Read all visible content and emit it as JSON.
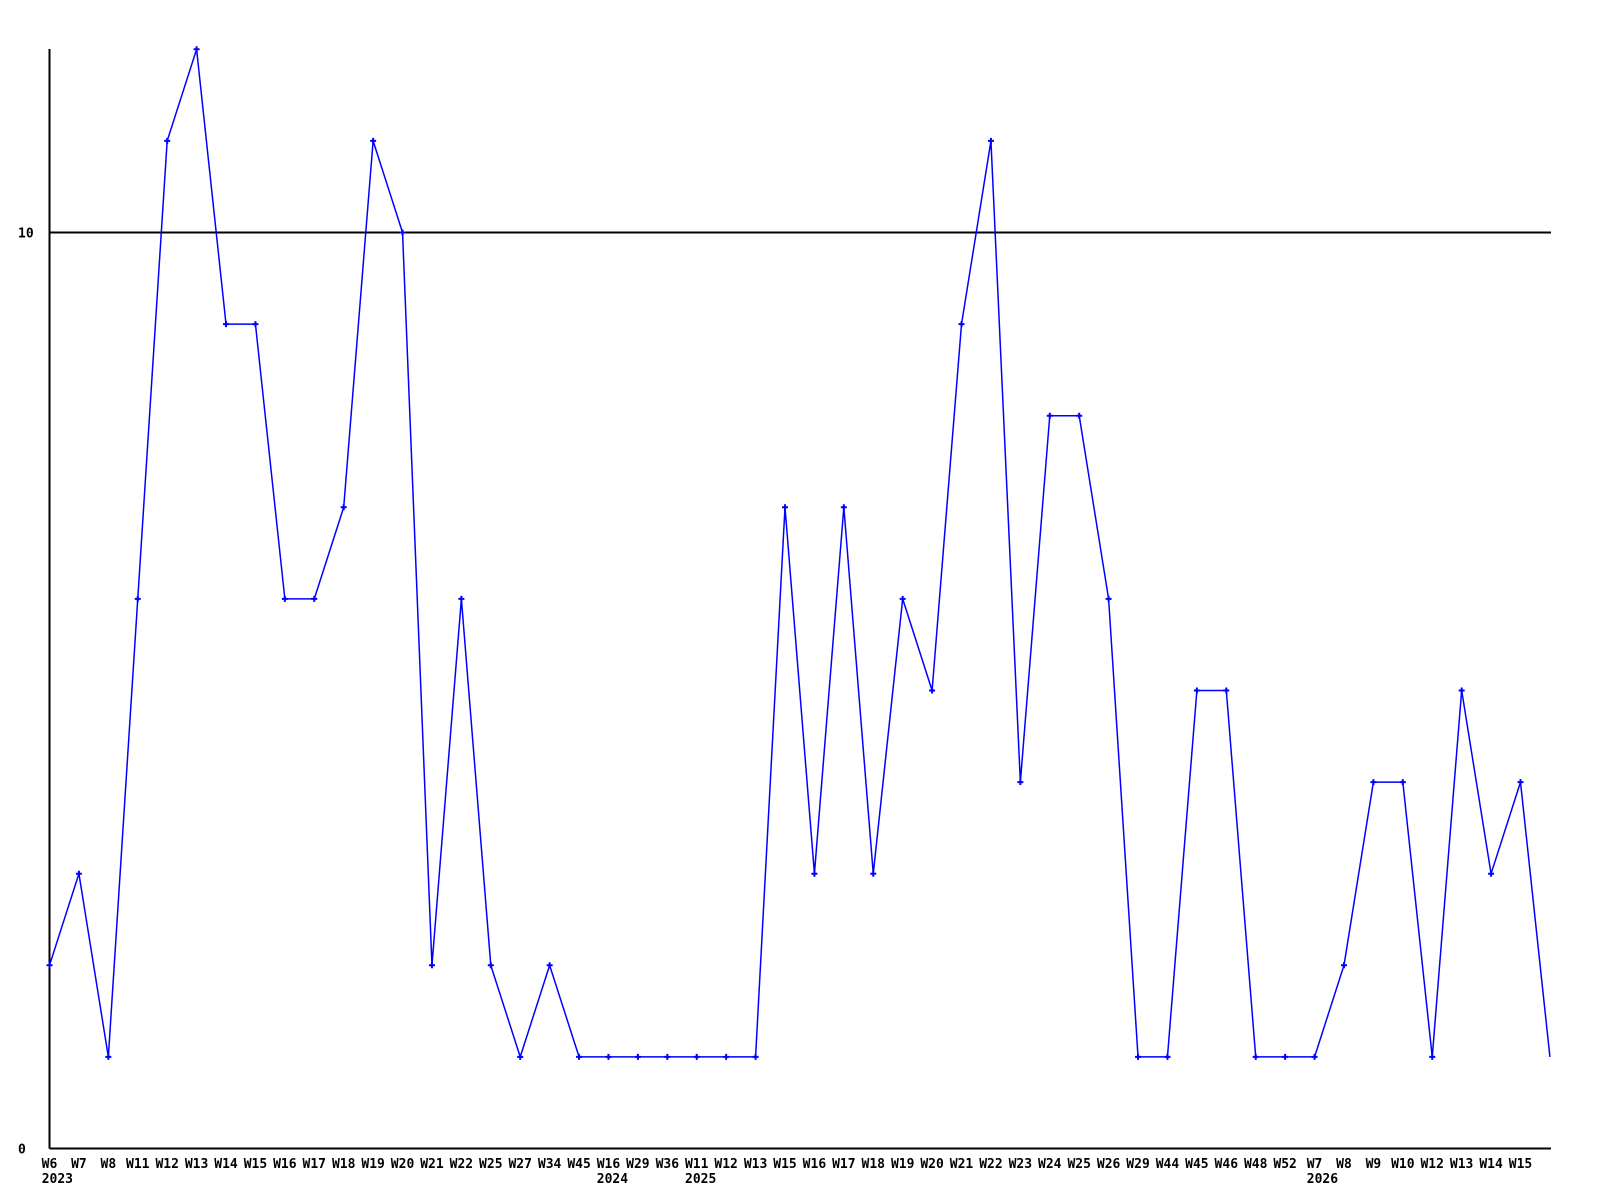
{
  "chart_data": {
    "type": "line",
    "title": "",
    "xlabel": "",
    "ylabel": "",
    "legend": "none",
    "grid": "single horizontal reference line at y=10",
    "ylim": [
      0,
      12
    ],
    "y_ticks": [
      {
        "value": 0,
        "label": "0"
      },
      {
        "value": 10,
        "label": "10"
      }
    ],
    "reference_line_value": 10,
    "line_color": "#0000ff",
    "axis_color": "#000000",
    "text_color": "#000000",
    "marker_style": "plus",
    "x_tick_labels": [
      "W6",
      "W7",
      "W8",
      "W11",
      "W12",
      "W13",
      "W14",
      "W15",
      "W16",
      "W17",
      "W18",
      "W19",
      "W20",
      "W21",
      "W22",
      "W25",
      "W27",
      "W34",
      "W45",
      "W16",
      "W29",
      "W36",
      "W11",
      "W12",
      "W13",
      "W15",
      "W16",
      "W17",
      "W18",
      "W19",
      "W20",
      "W21",
      "W22",
      "W23",
      "W24",
      "W25",
      "W26",
      "W29",
      "W44",
      "W45",
      "W46",
      "W48",
      "W52",
      "W7",
      "W8",
      "W9",
      "W10",
      "W12",
      "W13",
      "W14",
      "W15"
    ],
    "year_labels": [
      {
        "label": "2023",
        "index": 0
      },
      {
        "label": "2024",
        "index": 19
      },
      {
        "label": "2025",
        "index": 22
      },
      {
        "label": "2026",
        "index": 43
      }
    ],
    "values": [
      2,
      3,
      1,
      6,
      11,
      12,
      9,
      9,
      6,
      6,
      7,
      11,
      10,
      2,
      6,
      2,
      1,
      2,
      1,
      1,
      1,
      1,
      1,
      1,
      1,
      7,
      3,
      7,
      3,
      6,
      5,
      9,
      11,
      4,
      8,
      8,
      6,
      1,
      1,
      5,
      5,
      1,
      1,
      1,
      2,
      4,
      4,
      1,
      5,
      3,
      4
    ],
    "trailing_unlabeled_value": 1
  }
}
